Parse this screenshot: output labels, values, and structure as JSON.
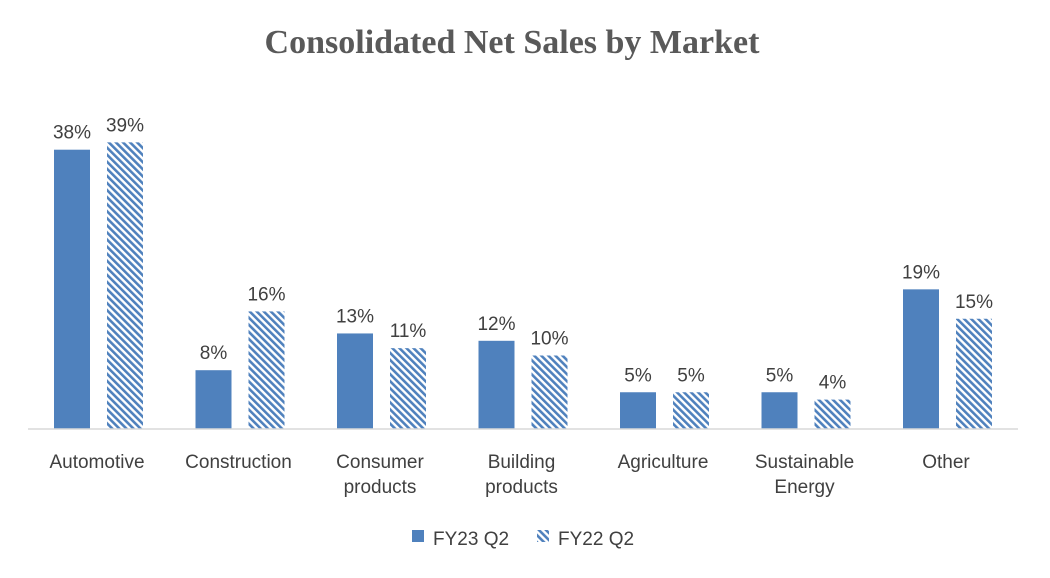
{
  "chart_data": {
    "type": "bar",
    "title": "Consolidated Net Sales by Market",
    "categories": [
      [
        "Automotive"
      ],
      [
        "Construction"
      ],
      [
        "Consumer",
        "products"
      ],
      [
        "Building",
        "products"
      ],
      [
        "Agriculture"
      ],
      [
        "Sustainable",
        "Energy"
      ],
      [
        "Other"
      ]
    ],
    "series": [
      {
        "name": "FY23 Q2",
        "values": [
          38,
          8,
          13,
          12,
          5,
          5,
          19
        ],
        "labels": [
          "38%",
          "8%",
          "13%",
          "12%",
          "5%",
          "5%",
          "19%"
        ],
        "color": "#4F81BD",
        "pattern": "solid"
      },
      {
        "name": "FY22 Q2",
        "values": [
          39,
          16,
          11,
          10,
          5,
          4,
          15
        ],
        "labels": [
          "39%",
          "16%",
          "11%",
          "10%",
          "5%",
          "4%",
          "15%"
        ],
        "color": "#4F81BD",
        "pattern": "hatched"
      }
    ],
    "ylim": [
      0,
      40
    ],
    "grid": false,
    "legend": "bottom-center"
  }
}
